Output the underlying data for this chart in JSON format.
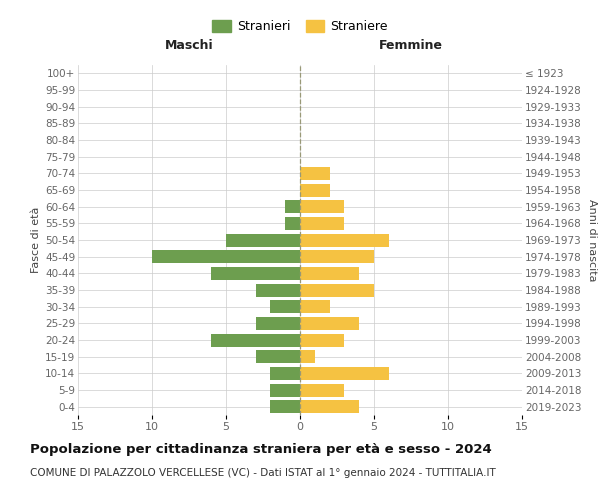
{
  "age_groups": [
    "0-4",
    "5-9",
    "10-14",
    "15-19",
    "20-24",
    "25-29",
    "30-34",
    "35-39",
    "40-44",
    "45-49",
    "50-54",
    "55-59",
    "60-64",
    "65-69",
    "70-74",
    "75-79",
    "80-84",
    "85-89",
    "90-94",
    "95-99",
    "100+"
  ],
  "birth_years": [
    "2019-2023",
    "2014-2018",
    "2009-2013",
    "2004-2008",
    "1999-2003",
    "1994-1998",
    "1989-1993",
    "1984-1988",
    "1979-1983",
    "1974-1978",
    "1969-1973",
    "1964-1968",
    "1959-1963",
    "1954-1958",
    "1949-1953",
    "1944-1948",
    "1939-1943",
    "1934-1938",
    "1929-1933",
    "1924-1928",
    "≤ 1923"
  ],
  "males": [
    2,
    2,
    2,
    3,
    6,
    3,
    2,
    3,
    6,
    10,
    5,
    1,
    1,
    0,
    0,
    0,
    0,
    0,
    0,
    0,
    0
  ],
  "females": [
    4,
    3,
    6,
    1,
    3,
    4,
    2,
    5,
    4,
    5,
    6,
    3,
    3,
    2,
    2,
    0,
    0,
    0,
    0,
    0,
    0
  ],
  "male_color": "#6d9e4f",
  "female_color": "#f5c242",
  "xlim": 15,
  "title": "Popolazione per cittadinanza straniera per età e sesso - 2024",
  "subtitle": "COMUNE DI PALAZZOLO VERCELLESE (VC) - Dati ISTAT al 1° gennaio 2024 - TUTTITALIA.IT",
  "xlabel_left": "Maschi",
  "xlabel_right": "Femmine",
  "ylabel_left": "Fasce di età",
  "ylabel_right": "Anni di nascita",
  "legend_male": "Stranieri",
  "legend_female": "Straniere",
  "background_color": "#ffffff",
  "grid_color": "#cccccc",
  "grid_color_y": "#dddddd",
  "tick_color": "#666666",
  "center_line_color": "#999977",
  "title_fontsize": 9.5,
  "subtitle_fontsize": 7.5,
  "bar_height": 0.78
}
